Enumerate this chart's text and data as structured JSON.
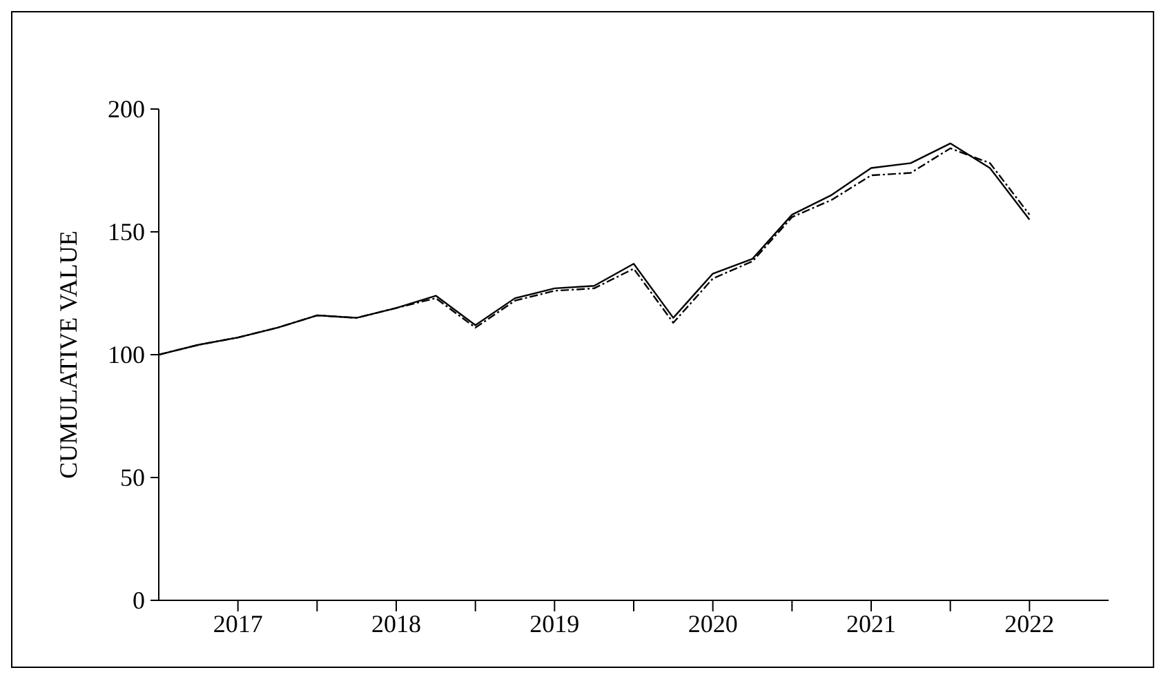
{
  "chart_data": {
    "type": "line",
    "ylabel": "CUMULATIVE VALUE",
    "x": [
      2017,
      2017.25,
      2017.5,
      2017.75,
      2018,
      2018.25,
      2018.5,
      2018.75,
      2019,
      2019.25,
      2019.5,
      2019.75,
      2020,
      2020.25,
      2020.5,
      2020.75,
      2021,
      2021.25,
      2021.5,
      2021.75,
      2022,
      2022.25,
      2022.5
    ],
    "series": [
      {
        "color": "#000000",
        "line_style": "solid",
        "values": [
          100,
          104,
          107,
          111,
          116,
          115,
          119,
          124,
          112,
          123,
          127,
          128,
          137,
          115,
          133,
          139,
          157,
          165,
          176,
          178,
          186,
          176,
          155
        ]
      },
      {
        "color": "#000000",
        "line_style": "dashed",
        "values": [
          100,
          104,
          107,
          111,
          116,
          115,
          119,
          123,
          111,
          122,
          126,
          127,
          135,
          113,
          131,
          138,
          156,
          163,
          173,
          174,
          184,
          178,
          157
        ]
      }
    ],
    "xlim": [
      2017,
      2023
    ],
    "xticks": [
      {
        "value": 2017.5,
        "label": "2017"
      },
      {
        "value": 2018,
        "label": null
      },
      {
        "value": 2018.5,
        "label": "2018"
      },
      {
        "value": 2019,
        "label": null
      },
      {
        "value": 2019.5,
        "label": "2019"
      },
      {
        "value": 2020,
        "label": null
      },
      {
        "value": 2020.5,
        "label": "2020"
      },
      {
        "value": 2021,
        "label": null
      },
      {
        "value": 2021.5,
        "label": "2021"
      },
      {
        "value": 2022,
        "label": null
      },
      {
        "value": 2022.5,
        "label": "2022"
      }
    ],
    "ylim": [
      0,
      200
    ],
    "yticks": [
      0,
      50,
      100,
      150,
      200
    ],
    "grid": false,
    "legend": false,
    "marker": "none"
  }
}
